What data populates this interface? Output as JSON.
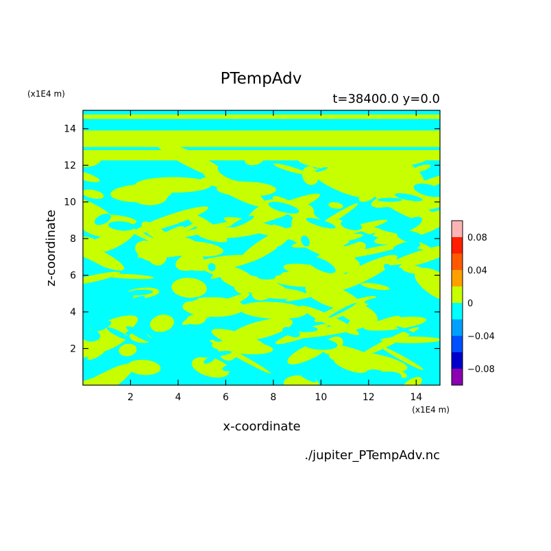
{
  "chart_data": {
    "type": "heatmap",
    "title": "PTempAdv",
    "subtitle": "t=38400.0 y=0.0",
    "source_file": "./jupiter_PTempAdv.nc",
    "xlabel": "x-coordinate",
    "ylabel": "z-coordinate",
    "x_unit": "(x1E4 m)",
    "y_unit": "(x1E4 m)",
    "xlim": [
      0,
      15
    ],
    "ylim": [
      0,
      15
    ],
    "x_ticks": [
      {
        "value": 2,
        "label": "2"
      },
      {
        "value": 4,
        "label": "4"
      },
      {
        "value": 6,
        "label": "6"
      },
      {
        "value": 8,
        "label": "8"
      },
      {
        "value": 10,
        "label": "10"
      },
      {
        "value": 12,
        "label": "12"
      },
      {
        "value": 14,
        "label": "14"
      }
    ],
    "y_ticks": [
      {
        "value": 2,
        "label": "2"
      },
      {
        "value": 4,
        "label": "4"
      },
      {
        "value": 6,
        "label": "6"
      },
      {
        "value": 8,
        "label": "8"
      },
      {
        "value": 10,
        "label": "10"
      },
      {
        "value": 12,
        "label": "12"
      },
      {
        "value": 14,
        "label": "14"
      }
    ],
    "field_colors": {
      "negative": "#00ffff",
      "positive": "#c8ff00"
    },
    "colorbar": {
      "range": [
        -0.1,
        0.1
      ],
      "levels": [
        {
          "from": -0.1,
          "to": -0.08,
          "color": "#8a00b0"
        },
        {
          "from": -0.08,
          "to": -0.06,
          "color": "#0000cc"
        },
        {
          "from": -0.06,
          "to": -0.04,
          "color": "#0050ff"
        },
        {
          "from": -0.04,
          "to": -0.02,
          "color": "#00a0ff"
        },
        {
          "from": -0.02,
          "to": 0.0,
          "color": "#00ffff"
        },
        {
          "from": 0.0,
          "to": 0.02,
          "color": "#c8ff00"
        },
        {
          "from": 0.02,
          "to": 0.04,
          "color": "#ffa000"
        },
        {
          "from": 0.04,
          "to": 0.06,
          "color": "#ff5a00"
        },
        {
          "from": 0.06,
          "to": 0.08,
          "color": "#ff1e00"
        },
        {
          "from": 0.08,
          "to": 0.1,
          "color": "#ffb4b4"
        }
      ],
      "tick_labels": [
        {
          "value": 0.08,
          "label": "0.08"
        },
        {
          "value": 0.04,
          "label": "0.04"
        },
        {
          "value": 0,
          "label": "0"
        },
        {
          "value": -0.04,
          "label": "−0.04"
        },
        {
          "value": -0.08,
          "label": "−0.08"
        }
      ]
    }
  }
}
